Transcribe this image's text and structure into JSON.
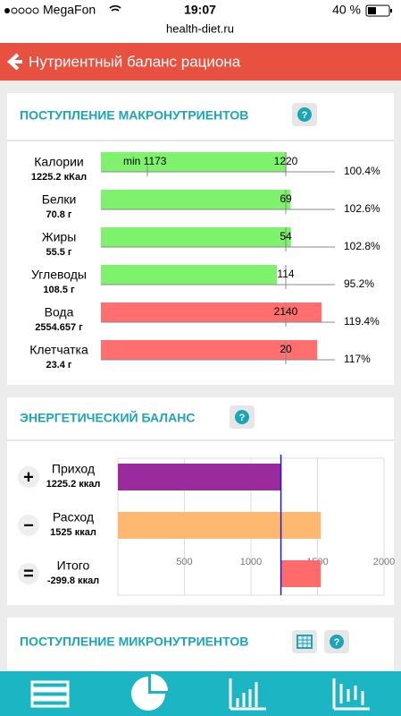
{
  "status_bar": {
    "carrier": "MegaFon",
    "time": "19:07",
    "battery": "40 %"
  },
  "url": "health-diet.ru",
  "header": {
    "title": "Нутриентный баланс рациона"
  },
  "macronutrients": {
    "title": "ПОСТУПЛЕНИЕ МАКРОНУТРИЕНТОВ",
    "help": "?",
    "rows": [
      {
        "name": "Калории",
        "amount": "1225.2 кКал",
        "target": "1220",
        "min": "min 1173",
        "percent": 100.4,
        "percent_label": "100.4%",
        "color": "#7ef26c"
      },
      {
        "name": "Белки",
        "amount": "70.8 г",
        "target": "69",
        "percent": 102.6,
        "percent_label": "102.6%",
        "color": "#7ef26c"
      },
      {
        "name": "Жиры",
        "amount": "55.5 г",
        "target": "54",
        "percent": 102.8,
        "percent_label": "102.8%",
        "color": "#7ef26c"
      },
      {
        "name": "Углеводы",
        "amount": "108.5 г",
        "target": "114",
        "percent": 95.2,
        "percent_label": "95.2%",
        "color": "#7ef26c"
      },
      {
        "name": "Вода",
        "amount": "2554.657 г",
        "target": "2140",
        "percent": 119.4,
        "percent_label": "119.4%",
        "color": "#ff6f6f"
      },
      {
        "name": "Клетчатка",
        "amount": "23.4 г",
        "target": "20",
        "percent": 117,
        "percent_label": "117%",
        "color": "#ff6f6f"
      }
    ]
  },
  "energy": {
    "title": "ЭНЕРГЕТИЧЕСКИЙ БАЛАНС",
    "help": "?",
    "xlim": [
      0,
      2000
    ],
    "xticks": [
      500,
      1000,
      1500,
      2000
    ],
    "rows": [
      {
        "sign": "+",
        "name": "Приход",
        "amount": "1225.2 ккал",
        "value": 1225.2,
        "color": "#9b2a9f"
      },
      {
        "sign": "−",
        "name": "Расход",
        "amount": "1525 ккал",
        "value": 1525,
        "color": "#ffb870"
      },
      {
        "sign": "=",
        "name": "Итого",
        "amount": "-299.8 ккал",
        "value": -299.8,
        "color": "#ff6b6b"
      }
    ]
  },
  "micronutrients": {
    "title": "ПОСТУПЛЕНИЕ МИКРОНУТРИЕНТОВ",
    "help": "?"
  }
}
